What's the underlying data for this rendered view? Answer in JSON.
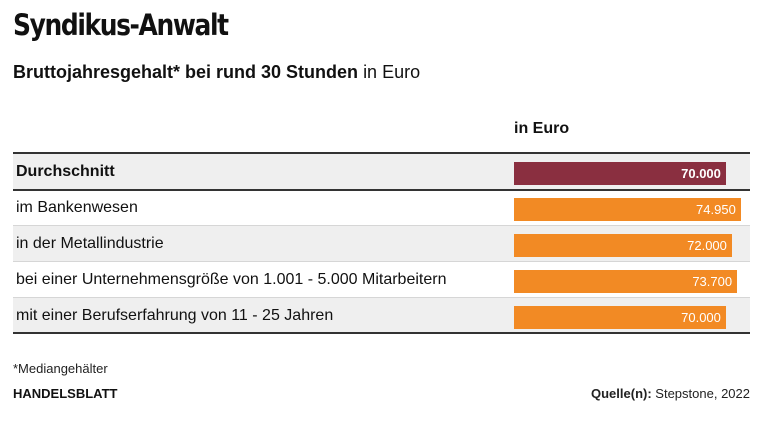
{
  "header": {
    "title": "Syndikus-Anwalt",
    "subtitle_bold": "Bruttojahresgehalt* bei rund 30 Stunden",
    "subtitle_rest": "in Euro"
  },
  "chart_data": {
    "type": "bar",
    "orientation": "horizontal",
    "title": "Syndikus-Anwalt",
    "subtitle": "Bruttojahresgehalt* bei rund 30 Stunden in Euro",
    "column_header": "in Euro",
    "categories": [
      "Durchschnitt",
      "im Bankenwesen",
      "in der Metallindustrie",
      "bei einer Unternehmensgröße von 1.001 - 5.000 Mitarbeitern",
      "mit einer Berufserfahrung von 11 - 25 Jahren"
    ],
    "values": [
      70000,
      74950,
      72000,
      73700,
      70000
    ],
    "value_labels": [
      "70.000",
      "74.950",
      "72.000",
      "73.700",
      "70.000"
    ],
    "xlim": [
      0,
      75000
    ],
    "colors": [
      "#8a2f40",
      "#f28a24",
      "#f28a24",
      "#f28a24",
      "#f28a24"
    ],
    "highlight_rows": [
      0
    ],
    "grid": false
  },
  "footer": {
    "footnote": "*Mediangehälter",
    "brand": "HANDELSBLATT",
    "source_label": "Quelle(n):",
    "source_text": "Stepstone, 2022"
  }
}
